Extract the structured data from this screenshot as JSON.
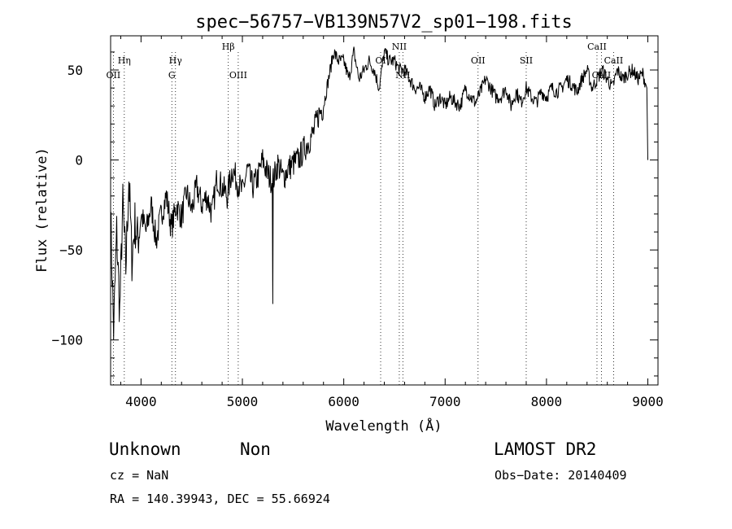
{
  "chart_data": {
    "type": "line",
    "title": "spec−56757−VB139N57V2_sp01−198.fits",
    "xlabel": "Wavelength (Å)",
    "ylabel": "Flux (relative)",
    "xlim": [
      3700,
      9100
    ],
    "ylim": [
      -125,
      69
    ],
    "x_ticks": [
      4000,
      5000,
      6000,
      7000,
      8000,
      9000
    ],
    "y_ticks": [
      50,
      0,
      -50,
      -100
    ],
    "x_tick_labels": [
      "4000",
      "5000",
      "6000",
      "7000",
      "8000",
      "9000"
    ],
    "y_tick_labels": [
      "50",
      "0",
      "−50",
      "−100"
    ],
    "series": [
      {
        "x": [
          3700,
          3730,
          3760,
          3790,
          3820,
          3850,
          3880,
          3910,
          3940,
          3970,
          4000,
          4050,
          4100,
          4150,
          4200,
          4250,
          4300,
          4350,
          4400,
          4450,
          4500,
          4550,
          4600,
          4650,
          4700,
          4750,
          4800,
          4850,
          4900,
          4950,
          5000,
          5050,
          5100,
          5150,
          5200,
          5250,
          5300,
          5350,
          5400,
          5450,
          5500,
          5550,
          5600,
          5650,
          5700,
          5750,
          5800,
          5850,
          5900,
          5950,
          6000,
          6050,
          6100,
          6150,
          6200,
          6250,
          6300,
          6350,
          6400,
          6450,
          6500,
          6550,
          6600,
          6650,
          6700,
          6750,
          6800,
          6850,
          6900,
          6950,
          7000,
          7050,
          7100,
          7150,
          7200,
          7250,
          7300,
          7350,
          7400,
          7450,
          7500,
          7550,
          7600,
          7650,
          7700,
          7750,
          7800,
          7850,
          7900,
          7950,
          8000,
          8050,
          8100,
          8150,
          8200,
          8250,
          8300,
          8350,
          8400,
          8450,
          8500,
          8550,
          8600,
          8650,
          8700,
          8750,
          8800,
          8850,
          8900,
          8950,
          8990,
          9000
        ],
        "values": [
          -30,
          -95,
          -40,
          -85,
          -25,
          -60,
          -10,
          -55,
          -35,
          -45,
          -30,
          -40,
          -25,
          -45,
          -30,
          -20,
          -38,
          -25,
          -32,
          -18,
          -28,
          -15,
          -25,
          -20,
          -30,
          -10,
          -15,
          -20,
          -5,
          -12,
          -18,
          -5,
          -15,
          -10,
          0,
          -8,
          -12,
          -2,
          -10,
          -5,
          -2,
          0,
          5,
          10,
          15,
          25,
          30,
          45,
          60,
          55,
          55,
          45,
          60,
          45,
          50,
          55,
          50,
          40,
          60,
          55,
          55,
          50,
          50,
          45,
          40,
          40,
          35,
          40,
          30,
          35,
          30,
          35,
          32,
          30,
          40,
          35,
          32,
          38,
          45,
          40,
          35,
          35,
          40,
          30,
          38,
          32,
          40,
          35,
          32,
          38,
          35,
          40,
          38,
          40,
          45,
          42,
          38,
          45,
          50,
          40,
          45,
          50,
          45,
          40,
          50,
          45,
          48,
          50,
          45,
          48,
          40,
          0
        ]
      }
    ],
    "line_annotations": [
      {
        "label": "Hη",
        "x": 3835,
        "row": 1
      },
      {
        "label": "OII",
        "x": 3727,
        "row": 2
      },
      {
        "label": "Hγ",
        "x": 4340,
        "row": 1
      },
      {
        "label": "G",
        "x": 4304,
        "row": 2
      },
      {
        "label": "Hβ",
        "x": 4861,
        "row": 0
      },
      {
        "label": "OIII",
        "x": 4959,
        "row": 2
      },
      {
        "label": "OI",
        "x": 6364,
        "row": 1
      },
      {
        "label": "NII",
        "x": 6548,
        "row": 0
      },
      {
        "label": "NII",
        "x": 6583,
        "row": 2
      },
      {
        "label": "OII",
        "x": 7325,
        "row": 1
      },
      {
        "label": "SII",
        "x": 7800,
        "row": 1
      },
      {
        "label": "CaII",
        "x": 8498,
        "row": 0
      },
      {
        "label": "CaII",
        "x": 8542,
        "row": 2
      },
      {
        "label": "CaII",
        "x": 8662,
        "row": 1
      }
    ]
  },
  "info": {
    "class_label": "Unknown",
    "subclass_label": "Non",
    "survey": "LAMOST DR2",
    "cz": "cz = NaN",
    "obs_date": "Obs−Date: 20140409",
    "coords": "RA = 140.39943, DEC =  55.66924"
  }
}
